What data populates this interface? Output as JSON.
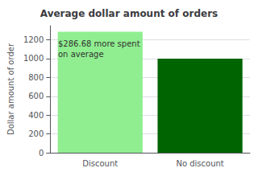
{
  "chart_data": {
    "type": "bar",
    "title": "Average dollar amount of orders",
    "ylabel": "Dollar amount of order",
    "categories": [
      "Discount",
      "No discount"
    ],
    "values": [
      1286.68,
      1000.0
    ],
    "colors": [
      "#90EE90",
      "#006400"
    ],
    "annotation": "$286.68 more spent\non average",
    "ylim": [
      0,
      1350
    ],
    "yticks": [
      0,
      200,
      400,
      600,
      800,
      1000,
      1200
    ]
  }
}
